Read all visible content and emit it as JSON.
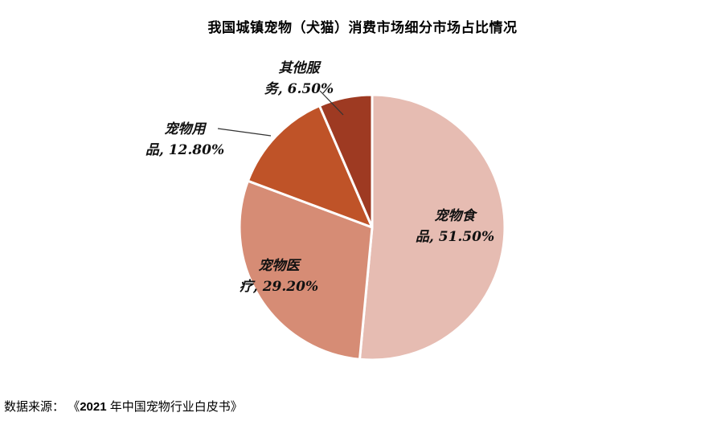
{
  "title": "我国城镇宠物（犬猫）消费市场细分市场占比情况",
  "source": {
    "label": "数据来源：",
    "book_prefix": "《",
    "year": "2021",
    "book_suffix": " 年中国宠物行业白皮书》"
  },
  "chart_data": {
    "type": "pie",
    "title": "我国城镇宠物（犬猫）消费市场细分市场占比情况",
    "unit": "%",
    "start_angle_deg": -90,
    "direction": "clockwise",
    "legend": "none",
    "slices": [
      {
        "name": "宠物食品",
        "value": 51.5,
        "color": "#E6BCB2",
        "label_line1": "宠物食",
        "label_line2": "品, 51.50%",
        "label_position": "inside"
      },
      {
        "name": "宠物医疗",
        "value": 29.2,
        "color": "#D68C75",
        "label_line1": "宠物医",
        "label_line2": "疗, 29.20%",
        "label_position": "inside"
      },
      {
        "name": "宠物用品",
        "value": 12.8,
        "color": "#BF5328",
        "label_line1": "宠物用",
        "label_line2": "品, 12.80%",
        "label_position": "outside"
      },
      {
        "name": "其他服务",
        "value": 6.5,
        "color": "#9E3A22",
        "label_line1": "其他服",
        "label_line2": "务, 6.50%",
        "label_position": "outside"
      }
    ]
  }
}
